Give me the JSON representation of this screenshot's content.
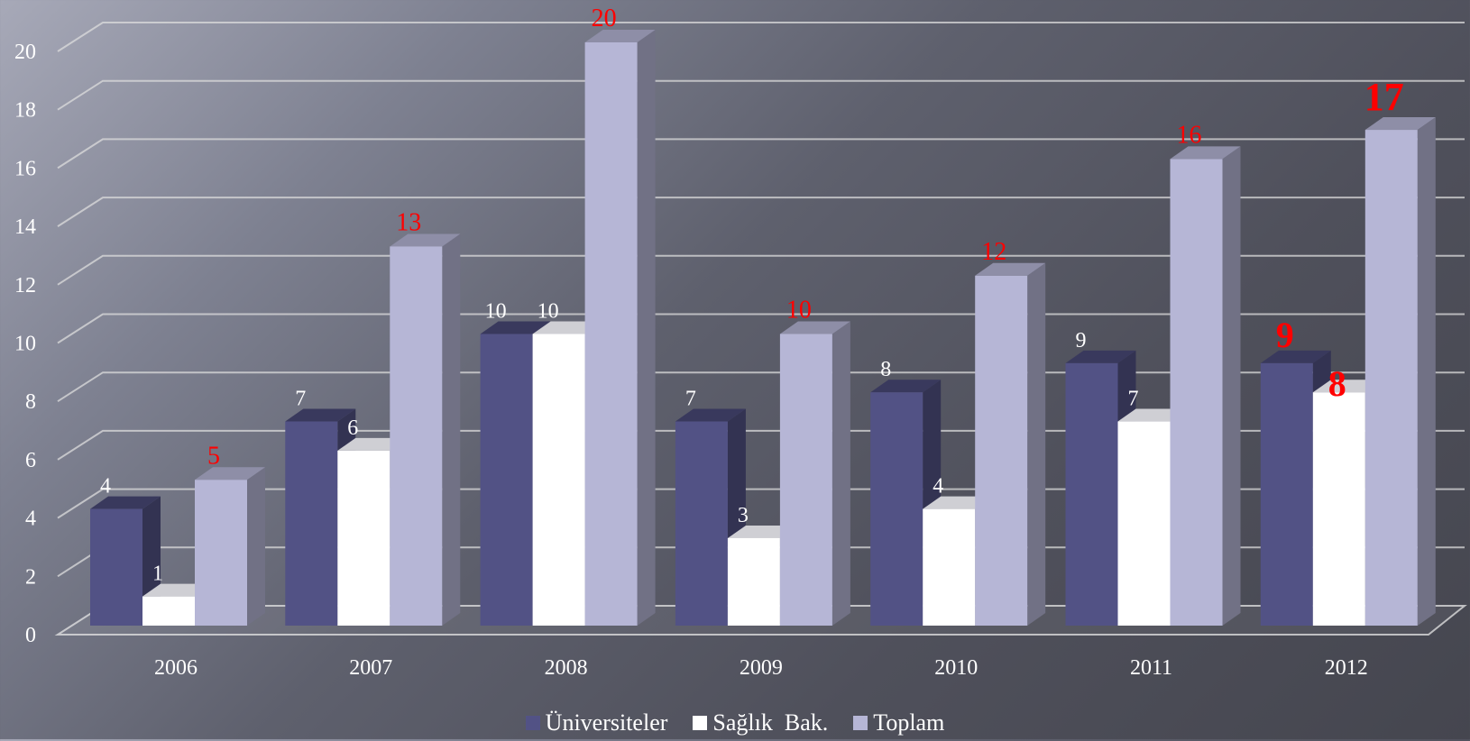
{
  "chart_data": {
    "type": "bar",
    "categories": [
      "2006",
      "2007",
      "2008",
      "2009",
      "2010",
      "2011",
      "2012"
    ],
    "series": [
      {
        "name": "Üniversiteler",
        "values": [
          4,
          7,
          10,
          7,
          8,
          9,
          9
        ],
        "color": "#525285",
        "label_color": "#ffffff"
      },
      {
        "name": "Sağlık  Bak.",
        "values": [
          1,
          6,
          10,
          3,
          4,
          7,
          8
        ],
        "color": "#ffffff",
        "label_color": "#ffffff"
      },
      {
        "name": "Toplam",
        "values": [
          5,
          13,
          20,
          10,
          12,
          16,
          17
        ],
        "color": "#b6b6d6",
        "label_color": "#ff0000"
      }
    ],
    "emphasized_labels": {
      "category": "2012",
      "note": "labels drawn larger and bold in the last category"
    },
    "yticks": [
      "0",
      "2",
      "4",
      "6",
      "8",
      "10",
      "12",
      "14",
      "16",
      "18",
      "20"
    ],
    "ylim": [
      0,
      20
    ],
    "grid": true,
    "three_d": true,
    "legend_position": "bottom"
  }
}
